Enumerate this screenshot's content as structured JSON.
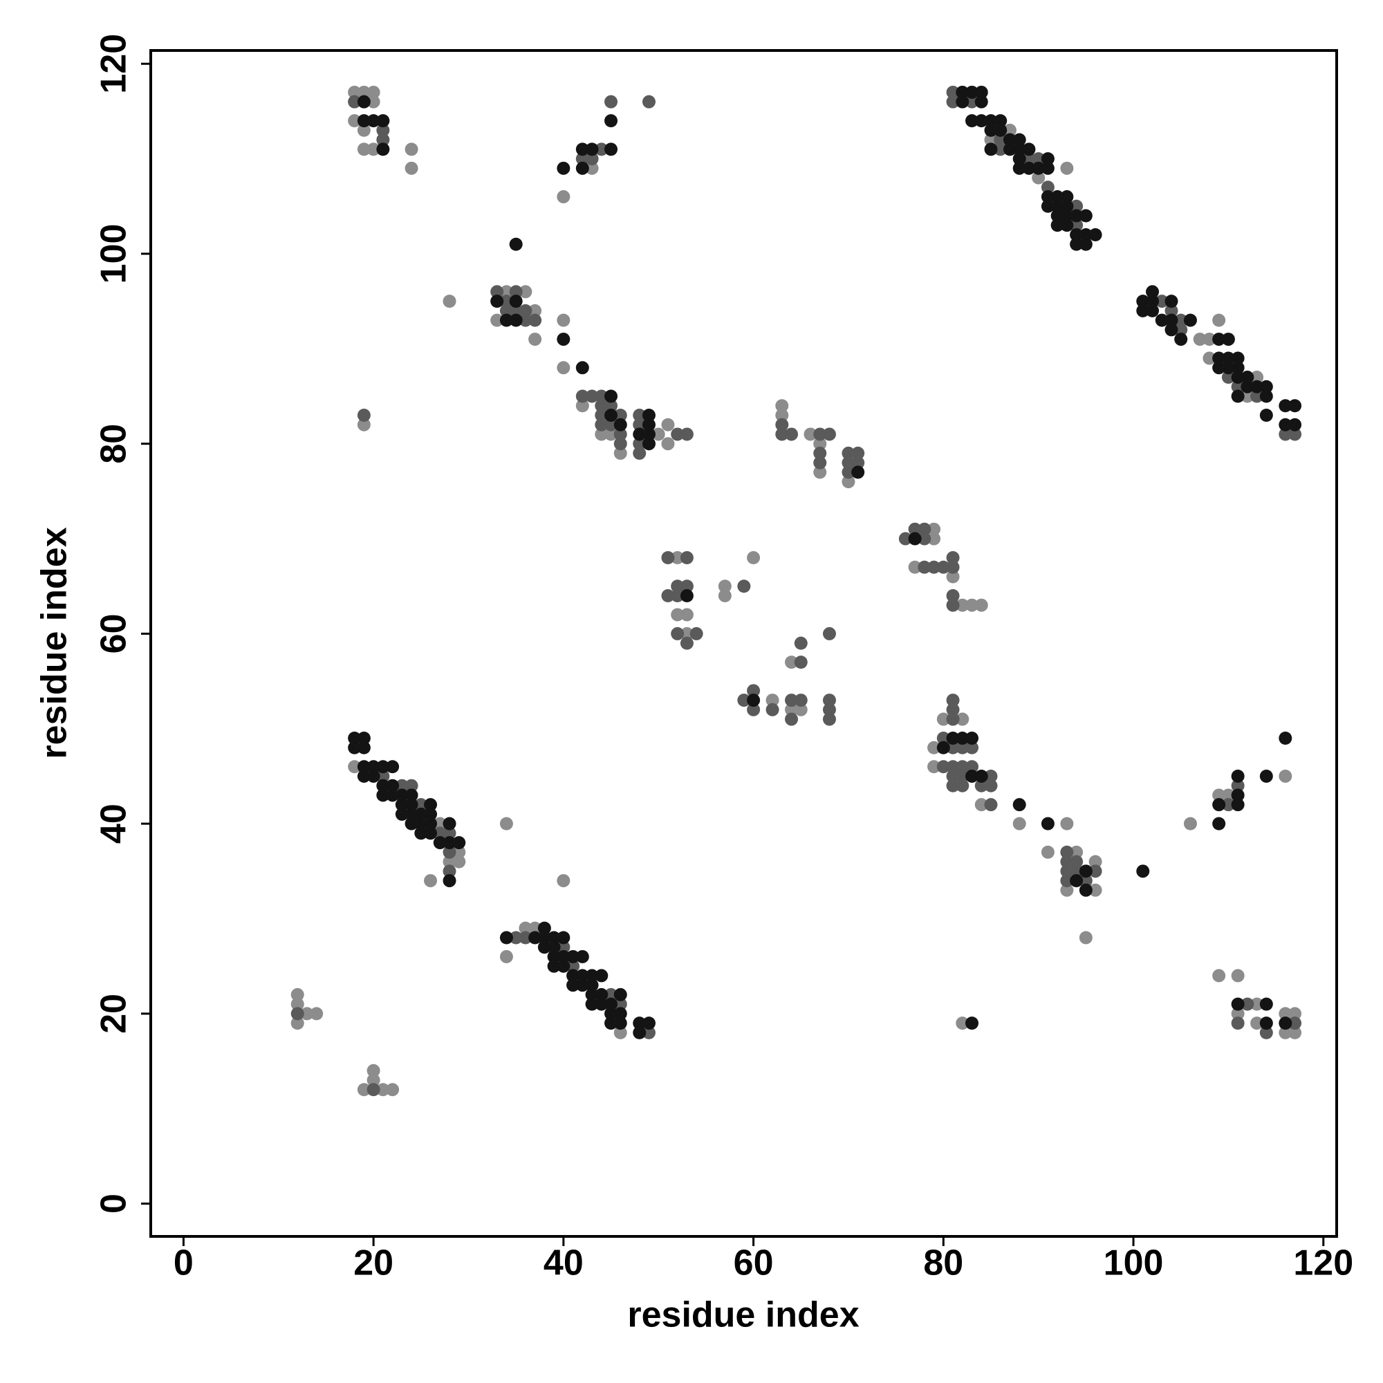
{
  "chart_data": {
    "type": "scatter",
    "xlabel": "residue index",
    "ylabel": "residue index",
    "xlim": [
      -3.45,
      121.4
    ],
    "ylim": [
      -3.45,
      121.4
    ],
    "xticks": [
      0,
      20,
      40,
      60,
      80,
      100,
      120
    ],
    "yticks": [
      0,
      20,
      40,
      60,
      80,
      100,
      120
    ],
    "grid": false,
    "series": [
      {
        "color": "#8c8c8c",
        "x": [
          18,
          19,
          20,
          20,
          18,
          19,
          19,
          20,
          24,
          24,
          43,
          40,
          28,
          34,
          36,
          37,
          33,
          37,
          40,
          40,
          42,
          44,
          45,
          50,
          51,
          46,
          51,
          19,
          63,
          63,
          66,
          67,
          67,
          70,
          79,
          79,
          77,
          81,
          82,
          83,
          84,
          52,
          52,
          53,
          53,
          57,
          57,
          60,
          64,
          62,
          64,
          65,
          18,
          27,
          29,
          28,
          29,
          26,
          34,
          40,
          36,
          37,
          34,
          46,
          12,
          12,
          13,
          14,
          12,
          20,
          20,
          19,
          21,
          22,
          87,
          85,
          90,
          93,
          107,
          108,
          109,
          108,
          113,
          112,
          80,
          82,
          79,
          79,
          84,
          88,
          93,
          91,
          94,
          96,
          93,
          96,
          95,
          116,
          109,
          110,
          106,
          82,
          109,
          111,
          113,
          111,
          113,
          116,
          117,
          116,
          117
        ],
        "y": [
          117,
          117,
          117,
          116,
          114,
          113,
          111,
          111,
          111,
          109,
          109,
          106,
          95,
          96,
          96,
          94,
          93,
          91,
          93,
          88,
          84,
          81,
          81,
          81,
          80,
          79,
          82,
          82,
          84,
          83,
          81,
          80,
          77,
          76,
          71,
          70,
          67,
          66,
          63,
          63,
          63,
          68,
          62,
          62,
          60,
          65,
          64,
          68,
          57,
          53,
          52,
          52,
          46,
          40,
          37,
          36,
          36,
          34,
          40,
          34,
          29,
          29,
          26,
          18,
          22,
          21,
          20,
          20,
          19,
          14,
          13,
          12,
          12,
          12,
          113,
          112,
          108,
          109,
          91,
          91,
          93,
          89,
          87,
          85,
          51,
          51,
          48,
          46,
          42,
          40,
          40,
          37,
          37,
          36,
          33,
          33,
          28,
          45,
          43,
          43,
          40,
          19,
          24,
          24,
          21,
          20,
          19,
          20,
          20,
          18,
          18
        ]
      },
      {
        "color": "#5a5a5a",
        "x": [
          18,
          21,
          21,
          45,
          49,
          44,
          42,
          43,
          33,
          35,
          34,
          34,
          35,
          36,
          36,
          37,
          42,
          43,
          44,
          44,
          45,
          44,
          46,
          48,
          44,
          45,
          48,
          46,
          46,
          48,
          48,
          52,
          53,
          19,
          63,
          63,
          64,
          67,
          68,
          67,
          67,
          70,
          71,
          70,
          71,
          70,
          76,
          77,
          78,
          78,
          78,
          79,
          80,
          81,
          81,
          81,
          81,
          51,
          53,
          52,
          53,
          51,
          52,
          52,
          54,
          53,
          59,
          68,
          65,
          65,
          59,
          60,
          60,
          62,
          64,
          64,
          65,
          68,
          68,
          68,
          21,
          23,
          24,
          25,
          27,
          28,
          28,
          28,
          35,
          36,
          40,
          41,
          45,
          46,
          49,
          12,
          20,
          81,
          81,
          83,
          86,
          86,
          89,
          90,
          91,
          94,
          94,
          103,
          104,
          105,
          105,
          110,
          111,
          113,
          116,
          117,
          81,
          81,
          81,
          80,
          81,
          82,
          83,
          80,
          81,
          82,
          83,
          81,
          82,
          85,
          81,
          82,
          84,
          85,
          85,
          93,
          93,
          94,
          93,
          94,
          96,
          93,
          95,
          111,
          110,
          112,
          111,
          114,
          117
        ],
        "y": [
          116,
          113,
          112,
          116,
          116,
          111,
          110,
          110,
          96,
          96,
          95,
          94,
          94,
          94,
          93,
          93,
          85,
          85,
          85,
          84,
          84,
          83,
          83,
          83,
          82,
          82,
          82,
          81,
          80,
          80,
          79,
          81,
          81,
          83,
          82,
          81,
          81,
          81,
          81,
          79,
          78,
          79,
          79,
          78,
          78,
          77,
          70,
          71,
          71,
          70,
          67,
          67,
          67,
          68,
          67,
          64,
          63,
          68,
          68,
          65,
          65,
          64,
          64,
          60,
          60,
          59,
          65,
          60,
          59,
          57,
          53,
          54,
          52,
          52,
          53,
          51,
          53,
          53,
          52,
          51,
          45,
          44,
          44,
          42,
          39,
          39,
          37,
          35,
          28,
          28,
          27,
          25,
          22,
          21,
          18,
          20,
          12,
          117,
          116,
          116,
          112,
          111,
          110,
          110,
          107,
          105,
          103,
          95,
          94,
          93,
          92,
          87,
          86,
          85,
          81,
          81,
          53,
          52,
          51,
          49,
          48,
          48,
          48,
          46,
          46,
          46,
          46,
          45,
          45,
          45,
          44,
          44,
          44,
          44,
          42,
          37,
          36,
          36,
          35,
          35,
          35,
          34,
          34,
          44,
          42,
          21,
          19,
          18,
          19
        ]
      },
      {
        "color": "#141414",
        "x": [
          19,
          19,
          20,
          21,
          21,
          45,
          42,
          43,
          45,
          40,
          42,
          35,
          33,
          35,
          34,
          35,
          40,
          42,
          45,
          45,
          49,
          46,
          49,
          48,
          49,
          49,
          71,
          77,
          53,
          60,
          18,
          19,
          18,
          19,
          19,
          20,
          21,
          22,
          19,
          20,
          21,
          22,
          21,
          22,
          23,
          24,
          23,
          24,
          26,
          23,
          24,
          25,
          26,
          24,
          25,
          26,
          28,
          25,
          26,
          27,
          28,
          29,
          28,
          38,
          34,
          37,
          38,
          39,
          40,
          38,
          39,
          39,
          40,
          41,
          42,
          39,
          40,
          41,
          42,
          43,
          44,
          41,
          42,
          43,
          43,
          44,
          46,
          43,
          44,
          45,
          45,
          46,
          45,
          46,
          48,
          49,
          48,
          82,
          83,
          84,
          82,
          84,
          83,
          84,
          85,
          86,
          85,
          86,
          87,
          88,
          85,
          87,
          88,
          89,
          88,
          88,
          89,
          90,
          91,
          91,
          91,
          92,
          93,
          91,
          92,
          93,
          92,
          93,
          94,
          95,
          92,
          93,
          94,
          95,
          96,
          94,
          95,
          102,
          101,
          102,
          104,
          101,
          102,
          103,
          104,
          106,
          104,
          105,
          109,
          110,
          109,
          110,
          111,
          109,
          110,
          111,
          111,
          112,
          112,
          113,
          114,
          111,
          114,
          114,
          116,
          117,
          116,
          117,
          81,
          82,
          83,
          80,
          83,
          84,
          88,
          91,
          95,
          94,
          95,
          101,
          116,
          114,
          111,
          111,
          109,
          111,
          109,
          83,
          111,
          114,
          114,
          116
        ],
        "y": [
          116,
          114,
          114,
          114,
          111,
          114,
          111,
          111,
          111,
          109,
          109,
          101,
          95,
          95,
          93,
          93,
          91,
          88,
          85,
          83,
          83,
          82,
          82,
          81,
          81,
          80,
          77,
          70,
          64,
          53,
          49,
          49,
          48,
          48,
          46,
          46,
          46,
          46,
          45,
          45,
          44,
          44,
          43,
          43,
          43,
          43,
          42,
          42,
          42,
          41,
          41,
          41,
          41,
          40,
          40,
          40,
          40,
          39,
          39,
          38,
          38,
          38,
          34,
          29,
          28,
          28,
          28,
          28,
          28,
          27,
          27,
          26,
          26,
          26,
          26,
          25,
          25,
          24,
          24,
          24,
          24,
          23,
          23,
          23,
          22,
          22,
          22,
          21,
          21,
          21,
          20,
          20,
          19,
          19,
          19,
          19,
          18,
          117,
          117,
          117,
          116,
          116,
          114,
          114,
          114,
          114,
          113,
          113,
          112,
          112,
          111,
          111,
          111,
          111,
          110,
          109,
          109,
          109,
          110,
          109,
          106,
          106,
          106,
          105,
          105,
          105,
          104,
          104,
          104,
          104,
          103,
          103,
          102,
          102,
          102,
          101,
          101,
          96,
          95,
          95,
          95,
          94,
          94,
          93,
          93,
          93,
          92,
          91,
          91,
          91,
          89,
          89,
          89,
          88,
          88,
          88,
          87,
          87,
          86,
          86,
          86,
          85,
          85,
          83,
          84,
          84,
          82,
          82,
          49,
          49,
          49,
          48,
          45,
          45,
          42,
          40,
          35,
          34,
          33,
          35,
          49,
          45,
          45,
          43,
          42,
          42,
          40,
          19,
          21,
          21,
          19,
          19
        ]
      }
    ]
  }
}
